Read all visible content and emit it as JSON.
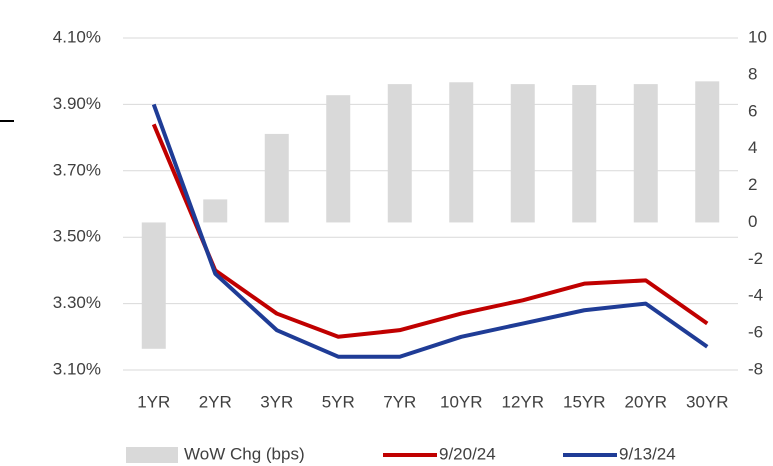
{
  "chart_data": {
    "type": "bar-line",
    "categories": [
      "1YR",
      "2YR",
      "3YR",
      "5YR",
      "7YR",
      "10YR",
      "12YR",
      "15YR",
      "20YR",
      "30YR"
    ],
    "bars": {
      "name": "WoW Chg (bps)",
      "color": "#d9d9d9",
      "axis": "y2",
      "values": [
        -6.85,
        1.25,
        4.8,
        6.9,
        7.5,
        7.6,
        7.5,
        7.45,
        7.5,
        7.65
      ]
    },
    "series": [
      {
        "name": "9/20/24",
        "color": "#c00000",
        "values": [
          3.84,
          3.4,
          3.27,
          3.2,
          3.22,
          3.27,
          3.31,
          3.36,
          3.37,
          3.24
        ]
      },
      {
        "name": "9/13/24",
        "color": "#1f3c96",
        "values": [
          3.9,
          3.39,
          3.22,
          3.14,
          3.14,
          3.2,
          3.24,
          3.28,
          3.3,
          3.17
        ]
      }
    ],
    "ylim": [
      3.1,
      4.1
    ],
    "yticks": [
      {
        "value": 3.1,
        "label": "3.10%"
      },
      {
        "value": 3.3,
        "label": "3.30%"
      },
      {
        "value": 3.5,
        "label": "3.50%"
      },
      {
        "value": 3.7,
        "label": "3.70%"
      },
      {
        "value": 3.9,
        "label": "3.90%"
      },
      {
        "value": 4.1,
        "label": "4.10%"
      }
    ],
    "y2lim": [
      -8,
      10
    ],
    "y2ticks": [
      -8,
      -6,
      -4,
      -2,
      0,
      2,
      4,
      6,
      8,
      10
    ],
    "grid": true
  }
}
